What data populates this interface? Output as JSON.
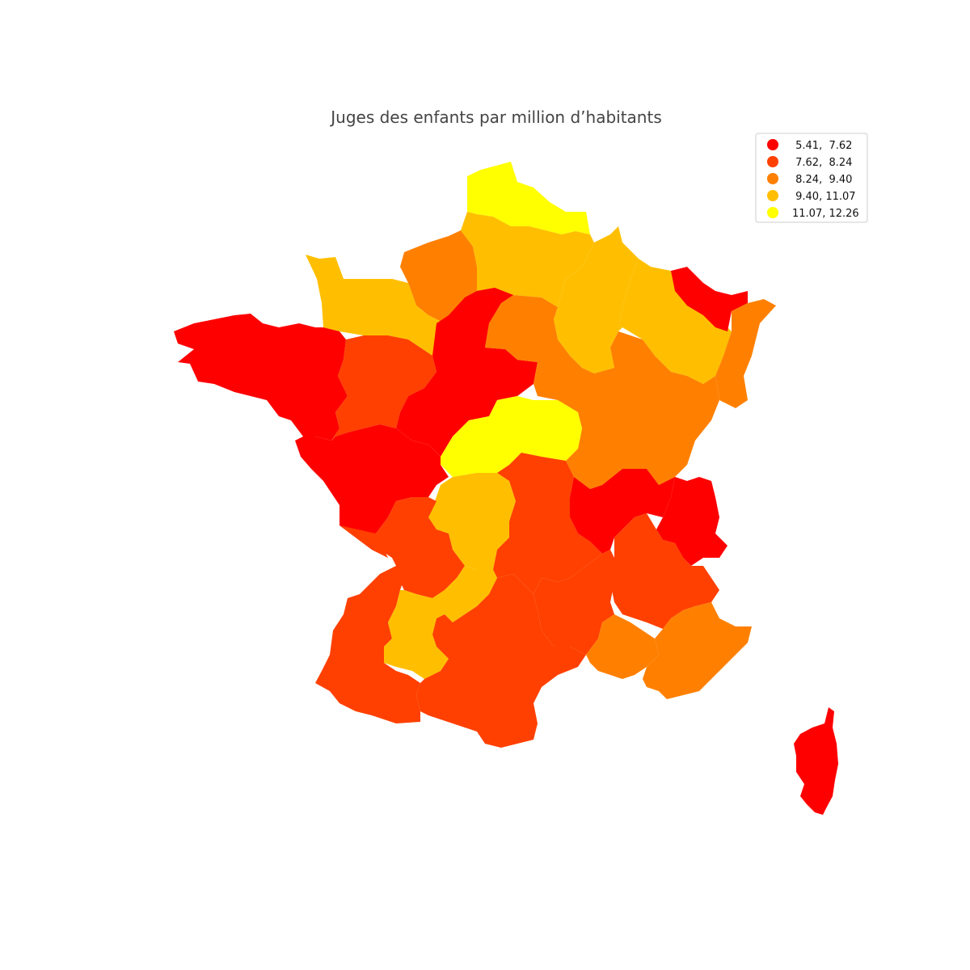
{
  "map": {
    "title": "Juges des enfants par million d’habitants"
  },
  "legend": {
    "entries": [
      {
        "label": " 5.41,  7.62",
        "color": "#ff0000"
      },
      {
        "label": " 7.62,  8.24",
        "color": "#ff4000"
      },
      {
        "label": " 8.24,  9.40",
        "color": "#ff8000"
      },
      {
        "label": " 9.40, 11.07",
        "color": "#ffbf00"
      },
      {
        "label": "11.07, 12.26",
        "color": "#ffff00"
      }
    ]
  }
}
